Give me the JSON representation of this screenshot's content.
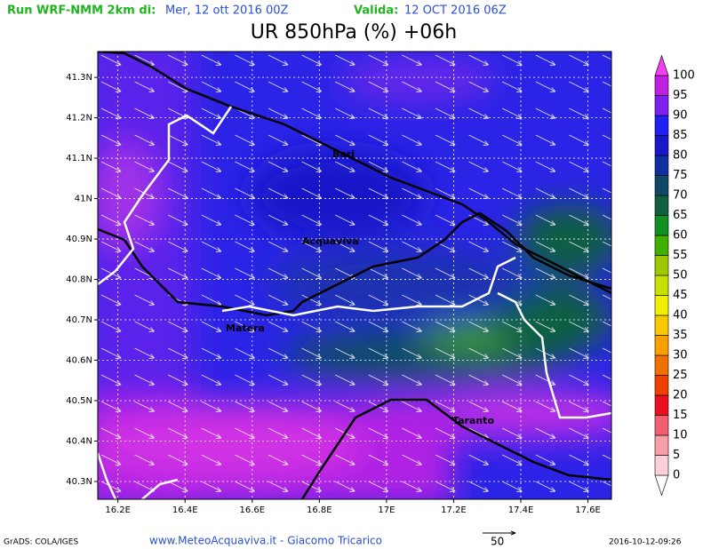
{
  "header": {
    "run_label": "Run WRF-NMM 2km di:",
    "run_date": "Mer, 12 ott 2016 00Z",
    "valid_label": "Valida:",
    "valid_date": "12 OCT 2016 06Z",
    "title": "UR 850hPa (%) +06h"
  },
  "map": {
    "latlim": [
      40.256,
      41.364
    ],
    "lonlim": [
      16.14,
      17.67
    ],
    "lat_ticks": [
      {
        "value": 41.3,
        "label": "41.3N"
      },
      {
        "value": 41.2,
        "label": "41.2N"
      },
      {
        "value": 41.1,
        "label": "41.1N"
      },
      {
        "value": 41,
        "label": "41N"
      },
      {
        "value": 40.9,
        "label": "40.9N"
      },
      {
        "value": 40.8,
        "label": "40.8N"
      },
      {
        "value": 40.7,
        "label": "40.7N"
      },
      {
        "value": 40.6,
        "label": "40.6N"
      },
      {
        "value": 40.5,
        "label": "40.5N"
      },
      {
        "value": 40.4,
        "label": "40.4N"
      },
      {
        "value": 40.3,
        "label": "40.3N"
      }
    ],
    "lon_ticks": [
      {
        "value": 16.2,
        "label": "16.2E"
      },
      {
        "value": 16.4,
        "label": "16.4E"
      },
      {
        "value": 16.6,
        "label": "16.6E"
      },
      {
        "value": 16.8,
        "label": "16.8E"
      },
      {
        "value": 17,
        "label": "17E"
      },
      {
        "value": 17.2,
        "label": "17.2E"
      },
      {
        "value": 17.4,
        "label": "17.4E"
      },
      {
        "value": 17.6,
        "label": "17.6E"
      }
    ],
    "cities": [
      "Bari",
      "Acquaviva",
      "Matera",
      "Taranto"
    ]
  },
  "colorbar": {
    "levels": [
      0,
      5,
      10,
      15,
      20,
      25,
      30,
      35,
      40,
      45,
      50,
      55,
      60,
      65,
      70,
      75,
      80,
      85,
      90,
      95,
      100
    ],
    "colors": [
      "#ffffff",
      "#fbd0d8",
      "#f7a0a8",
      "#f06070",
      "#e81020",
      "#f04000",
      "#f07000",
      "#f8a000",
      "#f8c800",
      "#f0f000",
      "#c8e000",
      "#a0c800",
      "#40b000",
      "#109020",
      "#106040",
      "#104868",
      "#1030a0",
      "#1818c8",
      "#2020f0",
      "#8020f0",
      "#c020e0",
      "#f040f0"
    ]
  },
  "footer": {
    "credit": "GrADS: COLA/IGES",
    "site": "www.MeteoAcquaviva.it - Giacomo Tricarico",
    "vector_scale": "50",
    "timestamp": "2016-10-12-09:26"
  }
}
